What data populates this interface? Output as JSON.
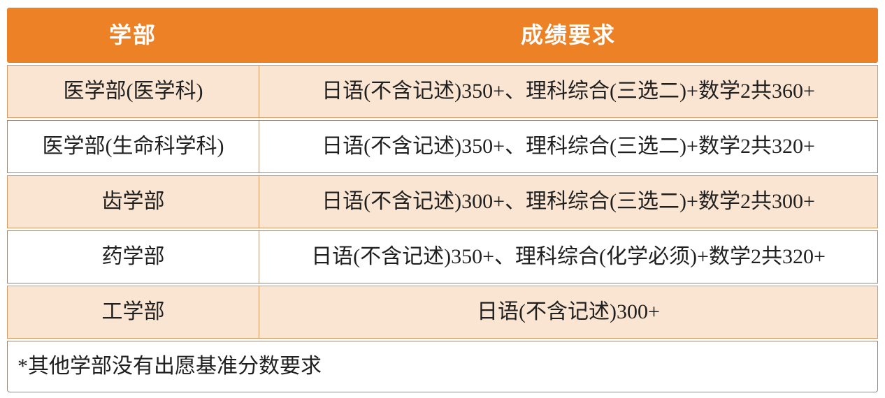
{
  "colors": {
    "header_bg": "#EC8125",
    "header_text": "#FFFFFF",
    "row_alt_bg": "#FAE5D2",
    "row_bg": "#FFFFFF",
    "row_alt_border": "#D89A62",
    "row_border": "#97867A",
    "body_text": "#1F1F1F"
  },
  "table": {
    "columns": [
      {
        "key": "dept",
        "label": "学部"
      },
      {
        "key": "requirement",
        "label": "成绩要求"
      }
    ],
    "rows": [
      {
        "dept": "医学部(医学科)",
        "requirement": "日语(不含记述)350+、理科综合(三选二)+数学2共360+"
      },
      {
        "dept": "医学部(生命科学科)",
        "requirement": "日语(不含记述)350+、理科综合(三选二)+数学2共320+"
      },
      {
        "dept": "齿学部",
        "requirement": "日语(不含记述)300+、理科综合(三选二)+数学2共300+"
      },
      {
        "dept": "药学部",
        "requirement": "日语(不含记述)350+、理科综合(化学必须)+数学2共320+"
      },
      {
        "dept": "工学部",
        "requirement": "日语(不含记述)300+"
      }
    ],
    "footnote": "*其他学部没有出愿基准分数要求"
  }
}
